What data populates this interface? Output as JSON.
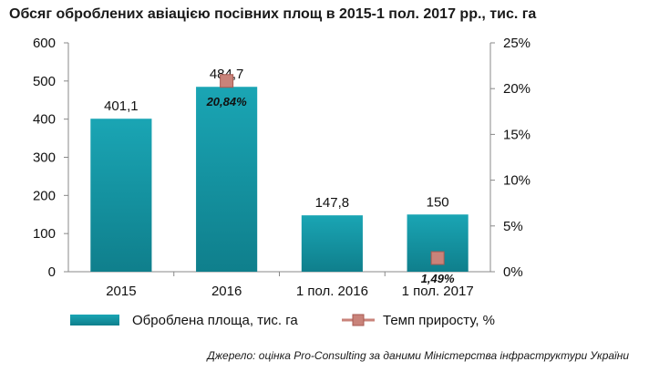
{
  "title": "Обсяг оброблених авіацією посівних площ в 2015-1 пол. 2017 рр., тис. га",
  "source": "Джерело: оцінка Pro-Consulting за даними Міністерства інфраструктури України",
  "colors": {
    "bar": "#1aa5b4",
    "bar_dark": "#0f7f8c",
    "marker": "#c9837a",
    "marker_edge": "#a85a52"
  },
  "chart_data": {
    "type": "bar",
    "categories": [
      "2015",
      "2016",
      "1 пол. 2016",
      "1 пол. 2017"
    ],
    "series": [
      {
        "name": "Оброблена площа, тис. га",
        "type": "bar",
        "axis": "left",
        "values": [
          401.1,
          484.7,
          147.8,
          150
        ],
        "labels": [
          "401,1",
          "484,7",
          "147,8",
          "150"
        ]
      },
      {
        "name": "Темп приросту, %",
        "type": "scatter",
        "axis": "right",
        "values": [
          null,
          20.84,
          null,
          1.49
        ],
        "labels": [
          null,
          "20,84%",
          null,
          "1,49%"
        ]
      }
    ],
    "y_left": {
      "lim": [
        0,
        600
      ],
      "ticks": [
        0,
        100,
        200,
        300,
        400,
        500,
        600
      ],
      "tick_labels": [
        "0",
        "100",
        "200",
        "300",
        "400",
        "500",
        "600"
      ]
    },
    "y_right": {
      "lim": [
        0,
        25
      ],
      "ticks": [
        0,
        5,
        10,
        15,
        20,
        25
      ],
      "tick_labels": [
        "0%",
        "5%",
        "10%",
        "15%",
        "20%",
        "25%"
      ]
    },
    "legend": {
      "position": "bottom"
    },
    "grid": false
  }
}
